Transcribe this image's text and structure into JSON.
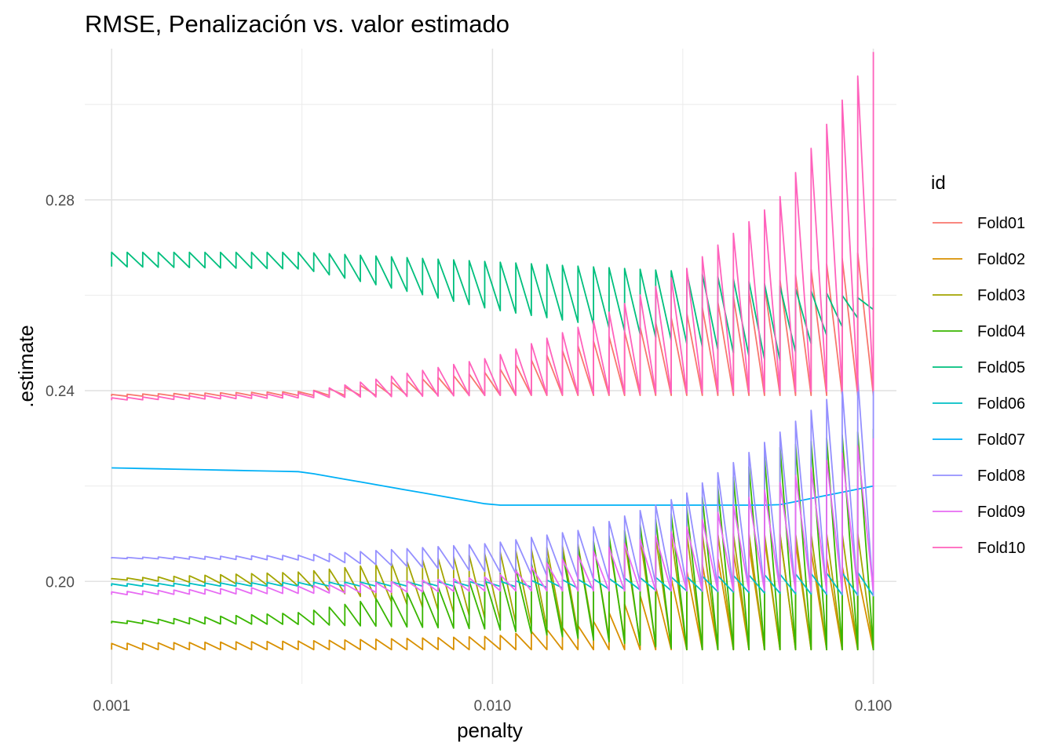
{
  "chart_data": {
    "type": "line",
    "title": "RMSE, Penalización vs. valor estimado",
    "xlabel": "penalty",
    "ylabel": ".estimate",
    "x_scale": "log10",
    "xlim": [
      0.00085,
      0.115
    ],
    "ylim": [
      0.1785,
      0.3117
    ],
    "x_ticks": [
      0.001,
      0.01,
      0.1
    ],
    "x_tick_labels": [
      "0.001",
      "0.010",
      "0.100"
    ],
    "x_minor_ticks": [
      0.00316,
      0.0316
    ],
    "y_ticks": [
      0.2,
      0.24,
      0.28
    ],
    "y_tick_labels": [
      "0.20",
      "0.24",
      "0.28"
    ],
    "y_minor_ticks": [
      0.22,
      0.26,
      0.3
    ],
    "grid": true,
    "legend_title": "id",
    "legend_position": "right",
    "x_range": [
      0.001,
      0.1
    ],
    "points_per_series": 50,
    "series": [
      {
        "name": "Fold01",
        "color": "#F8766D",
        "low": [
          [
            0.001,
            0.2388
          ],
          [
            0.00316,
            0.239
          ],
          [
            0.01,
            0.239
          ],
          [
            0.0316,
            0.239
          ],
          [
            0.1,
            0.239
          ]
        ],
        "high": [
          [
            0.001,
            0.2392
          ],
          [
            0.00316,
            0.2398
          ],
          [
            0.01,
            0.244
          ],
          [
            0.0316,
            0.256
          ],
          [
            0.1,
            0.27
          ]
        ]
      },
      {
        "name": "Fold02",
        "color": "#D89000",
        "low": [
          [
            0.001,
            0.1857
          ],
          [
            0.01,
            0.1857
          ],
          [
            0.0316,
            0.1857
          ],
          [
            0.1,
            0.1857
          ]
        ],
        "high": [
          [
            0.001,
            0.187
          ],
          [
            0.00316,
            0.1875
          ],
          [
            0.01,
            0.1885
          ],
          [
            0.0178,
            0.191
          ],
          [
            0.0316,
            0.202
          ],
          [
            0.0562,
            0.21
          ],
          [
            0.1,
            0.2
          ]
        ]
      },
      {
        "name": "Fold03",
        "color": "#A3A500",
        "low": [
          [
            0.001,
            0.2004
          ],
          [
            0.00316,
            0.199
          ],
          [
            0.01,
            0.192
          ],
          [
            0.0316,
            0.1857
          ],
          [
            0.1,
            0.1857
          ]
        ],
        "high": [
          [
            0.001,
            0.2006
          ],
          [
            0.00316,
            0.202
          ],
          [
            0.01,
            0.206
          ],
          [
            0.0316,
            0.21
          ],
          [
            0.1,
            0.21
          ]
        ]
      },
      {
        "name": "Fold04",
        "color": "#39B600",
        "low": [
          [
            0.001,
            0.1912
          ],
          [
            0.00316,
            0.191
          ],
          [
            0.01,
            0.19
          ],
          [
            0.0316,
            0.1857
          ],
          [
            0.1,
            0.1857
          ]
        ],
        "high": [
          [
            0.001,
            0.1916
          ],
          [
            0.00316,
            0.1935
          ],
          [
            0.01,
            0.201
          ],
          [
            0.0316,
            0.215
          ],
          [
            0.0562,
            0.228
          ],
          [
            0.1,
            0.232
          ]
        ]
      },
      {
        "name": "Fold05",
        "color": "#00BF7D",
        "low": [
          [
            0.001,
            0.266
          ],
          [
            0.00316,
            0.2655
          ],
          [
            0.01,
            0.257
          ],
          [
            0.0178,
            0.254
          ],
          [
            0.0316,
            0.25
          ],
          [
            0.0562,
            0.246
          ],
          [
            0.1,
            0.257
          ]
        ],
        "high": [
          [
            0.001,
            0.269
          ],
          [
            0.00316,
            0.269
          ],
          [
            0.01,
            0.267
          ],
          [
            0.0316,
            0.265
          ],
          [
            0.1,
            0.259
          ]
        ]
      },
      {
        "name": "Fold06",
        "color": "#00BFC4",
        "low": [
          [
            0.001,
            0.199
          ],
          [
            0.01,
            0.199
          ],
          [
            0.0316,
            0.198
          ],
          [
            0.1,
            0.197
          ]
        ],
        "high": [
          [
            0.001,
            0.1995
          ],
          [
            0.00316,
            0.1998
          ],
          [
            0.01,
            0.2
          ],
          [
            0.0178,
            0.2005
          ],
          [
            0.0316,
            0.201
          ],
          [
            0.1,
            0.202
          ]
        ]
      },
      {
        "name": "Fold07",
        "color": "#00B0F6",
        "low": [
          [
            0.001,
            0.2238
          ],
          [
            0.00316,
            0.223
          ],
          [
            0.01,
            0.216
          ],
          [
            0.0316,
            0.216
          ],
          [
            0.0562,
            0.216
          ],
          [
            0.1,
            0.22
          ]
        ]
      },
      {
        "name": "Fold08",
        "color": "#9590FF",
        "low": [
          [
            0.001,
            0.2048
          ],
          [
            0.00316,
            0.2045
          ],
          [
            0.01,
            0.202
          ],
          [
            0.0316,
            0.199
          ],
          [
            0.1,
            0.197
          ]
        ],
        "high": [
          [
            0.001,
            0.205
          ],
          [
            0.00316,
            0.2055
          ],
          [
            0.01,
            0.208
          ],
          [
            0.0178,
            0.211
          ],
          [
            0.0316,
            0.218
          ],
          [
            0.0562,
            0.231
          ],
          [
            0.1,
            0.245
          ]
        ]
      },
      {
        "name": "Fold09",
        "color": "#E76BF3",
        "low": [
          [
            0.001,
            0.1972
          ],
          [
            0.00316,
            0.1975
          ],
          [
            0.01,
            0.198
          ],
          [
            0.1,
            0.198
          ]
        ],
        "high": [
          [
            0.001,
            0.1978
          ],
          [
            0.00316,
            0.199
          ],
          [
            0.01,
            0.201
          ],
          [
            0.0316,
            0.211
          ],
          [
            0.1,
            0.23
          ]
        ]
      },
      {
        "name": "Fold10",
        "color": "#FF62BC",
        "low": [
          [
            0.001,
            0.238
          ],
          [
            0.00316,
            0.2385
          ],
          [
            0.01,
            0.239
          ],
          [
            0.0316,
            0.2395
          ],
          [
            0.1,
            0.24
          ]
        ],
        "high": [
          [
            0.001,
            0.2385
          ],
          [
            0.00316,
            0.2395
          ],
          [
            0.01,
            0.247
          ],
          [
            0.0178,
            0.254
          ],
          [
            0.0316,
            0.265
          ],
          [
            0.0562,
            0.28
          ],
          [
            0.1,
            0.311
          ]
        ]
      }
    ]
  }
}
